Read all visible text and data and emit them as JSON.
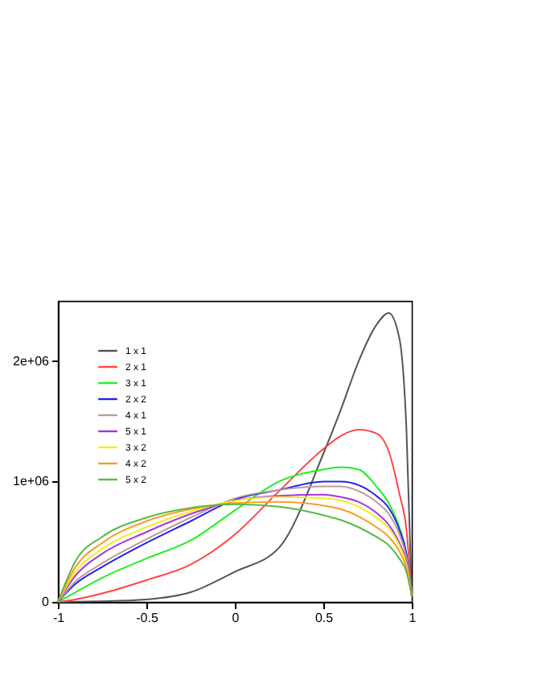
{
  "chart_data": {
    "type": "line",
    "x": [
      -1,
      -0.9,
      -0.75,
      -0.5,
      -0.25,
      0,
      0.25,
      0.5,
      0.6,
      0.7,
      0.8,
      0.87,
      0.93,
      0.97,
      1
    ],
    "xlim": [
      -1,
      1
    ],
    "xticks": [
      -1,
      -0.5,
      0,
      0.5,
      1
    ],
    "ylim": [
      0,
      2500000
    ],
    "yticks": [
      0,
      {
        "value": 1000000,
        "label": "1e+06"
      },
      {
        "value": 2000000,
        "label": "2e+06"
      }
    ],
    "legend": "top left",
    "grid": false,
    "series": [
      {
        "name": "1 x 1",
        "color": "#555555",
        "values": [
          0,
          1000,
          5000,
          20000,
          80000,
          250000,
          450000,
          1230000,
          1600000,
          2000000,
          2300000,
          2400000,
          2190000,
          1430000,
          50000
        ]
      },
      {
        "name": "2 x 1",
        "color": "#ff4444",
        "values": [
          0,
          20000,
          70000,
          180000,
          310000,
          560000,
          920000,
          1270000,
          1380000,
          1430000,
          1400000,
          1250000,
          900000,
          600000,
          50000
        ]
      },
      {
        "name": "3 x 1",
        "color": "#22ee22",
        "values": [
          0,
          80000,
          200000,
          360000,
          510000,
          760000,
          1000000,
          1100000,
          1120000,
          1100000,
          960000,
          820000,
          620000,
          400000,
          50000
        ]
      },
      {
        "name": "2 x 2",
        "color": "#2222ee",
        "values": [
          0,
          150000,
          290000,
          490000,
          670000,
          850000,
          930000,
          1000000,
          1000000,
          970000,
          880000,
          780000,
          600000,
          400000,
          50000
        ]
      },
      {
        "name": "4 x 1",
        "color": "#bc9a9a",
        "values": [
          0,
          170000,
          320000,
          520000,
          700000,
          860000,
          930000,
          960000,
          960000,
          920000,
          830000,
          730000,
          560000,
          370000,
          50000
        ]
      },
      {
        "name": "5 x 1",
        "color": "#aa33dd",
        "values": [
          0,
          220000,
          400000,
          580000,
          730000,
          840000,
          880000,
          890000,
          870000,
          830000,
          740000,
          640000,
          490000,
          330000,
          50000
        ]
      },
      {
        "name": "3 x 2",
        "color": "#eeee22",
        "values": [
          0,
          250000,
          440000,
          620000,
          750000,
          840000,
          870000,
          860000,
          840000,
          790000,
          700000,
          610000,
          470000,
          310000,
          50000
        ]
      },
      {
        "name": "4 x 2",
        "color": "#ff9922",
        "values": [
          0,
          290000,
          490000,
          670000,
          770000,
          820000,
          830000,
          800000,
          770000,
          710000,
          620000,
          540000,
          420000,
          280000,
          50000
        ]
      },
      {
        "name": "5 x 2",
        "color": "#55bb44",
        "values": [
          0,
          340000,
          540000,
          700000,
          780000,
          810000,
          790000,
          720000,
          680000,
          620000,
          540000,
          470000,
          360000,
          250000,
          50000
        ]
      }
    ]
  }
}
